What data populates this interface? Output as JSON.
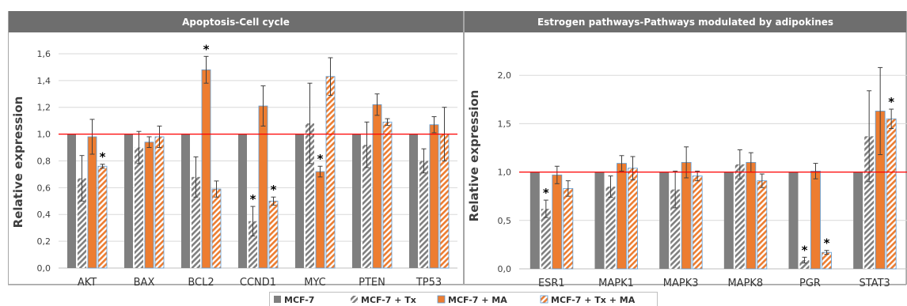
{
  "chart_data": [
    {
      "type": "bar",
      "title": "Apoptosis-Cell cycle",
      "ylabel": "Relative expression",
      "ylim": [
        0,
        1.7
      ],
      "yticks": [
        "0,0",
        "0,2",
        "0,4",
        "0,6",
        "0,8",
        "1,0",
        "1,2",
        "1,4",
        "1,6"
      ],
      "yticks_values": [
        0,
        0.2,
        0.4,
        0.6,
        0.8,
        1.0,
        1.2,
        1.4,
        1.6
      ],
      "reference_line": 1.0,
      "grid": true,
      "categories": [
        "AKT",
        "BAX",
        "BCL2",
        "CCND1",
        "MYC",
        "PTEN",
        "TP53"
      ],
      "series": [
        {
          "name": "MCF-7",
          "values": [
            1.0,
            1.0,
            1.0,
            1.0,
            1.0,
            1.0,
            1.0
          ],
          "errors": [
            0,
            0,
            0,
            0,
            0,
            0,
            0
          ]
        },
        {
          "name": "MCF-7 + Tx",
          "values": [
            0.67,
            0.9,
            0.68,
            0.35,
            1.08,
            0.92,
            0.8
          ],
          "errors": [
            0.17,
            0.12,
            0.15,
            0.11,
            0.3,
            0.17,
            0.09
          ]
        },
        {
          "name": "MCF-7 + MA",
          "values": [
            0.98,
            0.94,
            1.48,
            1.21,
            0.72,
            1.22,
            1.07
          ],
          "errors": [
            0.13,
            0.04,
            0.1,
            0.15,
            0.04,
            0.08,
            0.06
          ]
        },
        {
          "name": "MCF-7 + Tx + MA",
          "values": [
            0.76,
            0.98,
            0.59,
            0.5,
            1.43,
            1.09,
            1.0
          ],
          "errors": [
            0.015,
            0.08,
            0.06,
            0.03,
            0.14,
            0.025,
            0.2
          ]
        }
      ],
      "significance": [
        [
          0,
          3
        ],
        [
          2,
          2
        ],
        [
          3,
          1
        ],
        [
          3,
          3
        ],
        [
          4,
          2
        ]
      ]
    },
    {
      "type": "bar",
      "title": "Estrogen pathways-Pathways modulated by adipokines",
      "ylabel": "Relative expression",
      "ylim": [
        0,
        2.2
      ],
      "yticks": [
        "0,0",
        "0,5",
        "1,0",
        "1,5",
        "2,0"
      ],
      "yticks_values": [
        0,
        0.5,
        1.0,
        1.5,
        2.0
      ],
      "reference_line": 1.0,
      "grid": true,
      "categories": [
        "ESR1",
        "MAPK1",
        "MAPK3",
        "MAPK8",
        "PGR",
        "STAT3"
      ],
      "series": [
        {
          "name": "MCF-7",
          "values": [
            1.0,
            1.0,
            1.0,
            1.0,
            1.0,
            1.0
          ],
          "errors": [
            0,
            0,
            0,
            0,
            0,
            0
          ]
        },
        {
          "name": "MCF-7 + Tx",
          "values": [
            0.62,
            0.85,
            0.82,
            1.08,
            0.09,
            1.37
          ],
          "errors": [
            0.09,
            0.11,
            0.19,
            0.15,
            0.03,
            0.47
          ]
        },
        {
          "name": "MCF-7 + MA",
          "values": [
            0.97,
            1.09,
            1.1,
            1.1,
            1.01,
            1.63
          ],
          "errors": [
            0.09,
            0.08,
            0.16,
            0.1,
            0.08,
            0.45
          ]
        },
        {
          "name": "MCF-7 + Tx + MA",
          "values": [
            0.83,
            1.04,
            0.96,
            0.91,
            0.17,
            1.55
          ],
          "errors": [
            0.08,
            0.12,
            0.05,
            0.07,
            0.02,
            0.1
          ]
        }
      ],
      "significance": [
        [
          0,
          1
        ],
        [
          4,
          1
        ],
        [
          4,
          3
        ],
        [
          5,
          3
        ]
      ]
    }
  ],
  "legend": {
    "position": "bottom",
    "items": [
      {
        "label": "MCF-7",
        "style": "solid-gray"
      },
      {
        "label": "MCF-7 + Tx",
        "style": "hatch-gray"
      },
      {
        "label": "MCF-7 +  MA",
        "style": "solid-orange"
      },
      {
        "label": "MCF-7 + Tx +  MA",
        "style": "hatch-orange"
      }
    ]
  },
  "significance_marker": "*",
  "colors": {
    "title_bar": "#6e6e6e",
    "control": "#7f7f7f",
    "hatch_gray": "#7f7f7f",
    "orange": "#ed7d31",
    "bar_outline": "#5b9bd5",
    "reference_line": "#ff0000",
    "grid": "#d9d9d9"
  }
}
